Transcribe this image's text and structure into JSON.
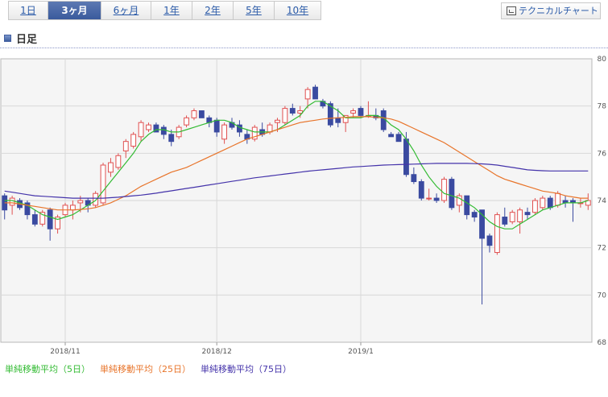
{
  "tabs": [
    {
      "label": "1日",
      "active": false
    },
    {
      "label": "3ヶ月",
      "active": true
    },
    {
      "label": "6ヶ月",
      "active": false
    },
    {
      "label": "1年",
      "active": false
    },
    {
      "label": "2年",
      "active": false
    },
    {
      "label": "5年",
      "active": false
    },
    {
      "label": "10年",
      "active": false
    }
  ],
  "tech_button": {
    "label": "テクニカルチャート",
    "icon": "chart-icon"
  },
  "section": {
    "title": "日足",
    "icon": "square-icon"
  },
  "chart_data": {
    "type": "candlestick",
    "title": "",
    "xlabel": "",
    "ylabel": "",
    "ylim": [
      68,
      80
    ],
    "yticks": [
      68,
      70,
      72,
      74,
      76,
      78,
      80
    ],
    "xticks": [
      "2018/11",
      "2018/12",
      "2019/1"
    ],
    "xtick_index": [
      8,
      28,
      47
    ],
    "grid": true,
    "colors": {
      "up": "#e05050",
      "down": "#3a4aa0",
      "ma5": "#33bb33",
      "ma25": "#e8742a",
      "ma75": "#4433aa"
    },
    "candles": [
      [
        74.2,
        74.3,
        73.2,
        73.6
      ],
      [
        73.8,
        74.2,
        73.4,
        74.1
      ],
      [
        74.0,
        74.1,
        73.6,
        73.7
      ],
      [
        73.9,
        74.0,
        73.2,
        73.4
      ],
      [
        73.4,
        73.6,
        72.9,
        73.0
      ],
      [
        73.0,
        73.6,
        72.9,
        73.5
      ],
      [
        73.6,
        73.7,
        72.3,
        72.8
      ],
      [
        72.8,
        73.4,
        72.6,
        73.3
      ],
      [
        73.4,
        73.9,
        73.3,
        73.8
      ],
      [
        73.6,
        74.0,
        73.2,
        73.8
      ],
      [
        73.9,
        74.2,
        73.5,
        74.0
      ],
      [
        74.0,
        74.1,
        73.5,
        73.8
      ],
      [
        73.8,
        74.4,
        73.7,
        74.3
      ],
      [
        73.9,
        75.6,
        73.8,
        75.5
      ],
      [
        75.2,
        75.8,
        75.0,
        75.6
      ],
      [
        75.4,
        76.0,
        75.3,
        75.9
      ],
      [
        76.1,
        76.6,
        75.8,
        76.5
      ],
      [
        76.3,
        76.9,
        76.2,
        76.8
      ],
      [
        76.7,
        77.4,
        76.5,
        77.3
      ],
      [
        77.0,
        77.3,
        76.9,
        77.2
      ],
      [
        77.2,
        77.3,
        76.9,
        76.9
      ],
      [
        77.1,
        77.2,
        76.6,
        76.8
      ],
      [
        76.8,
        77.0,
        76.3,
        76.5
      ],
      [
        76.7,
        77.2,
        76.6,
        77.1
      ],
      [
        77.2,
        77.6,
        77.1,
        77.5
      ],
      [
        77.5,
        77.9,
        77.4,
        77.8
      ],
      [
        77.8,
        77.8,
        77.5,
        77.5
      ],
      [
        77.5,
        77.6,
        77.1,
        77.3
      ],
      [
        77.4,
        77.5,
        76.7,
        76.9
      ],
      [
        76.6,
        77.3,
        76.4,
        77.2
      ],
      [
        77.3,
        77.5,
        77.0,
        77.1
      ],
      [
        77.2,
        77.4,
        76.7,
        76.9
      ],
      [
        76.8,
        77.0,
        76.4,
        76.6
      ],
      [
        76.6,
        77.2,
        76.5,
        77.1
      ],
      [
        77.0,
        77.3,
        76.7,
        76.8
      ],
      [
        76.9,
        77.3,
        76.8,
        77.2
      ],
      [
        77.3,
        77.5,
        76.9,
        77.4
      ],
      [
        77.3,
        78.0,
        77.2,
        77.9
      ],
      [
        77.9,
        78.1,
        77.6,
        77.7
      ],
      [
        77.7,
        78.0,
        77.5,
        77.8
      ],
      [
        78.3,
        78.8,
        77.9,
        78.7
      ],
      [
        78.8,
        78.9,
        78.3,
        78.3
      ],
      [
        78.2,
        78.3,
        77.9,
        78.0
      ],
      [
        78.1,
        78.2,
        77.1,
        77.2
      ],
      [
        77.5,
        77.9,
        77.1,
        77.3
      ],
      [
        77.3,
        77.6,
        76.9,
        77.6
      ],
      [
        77.7,
        77.9,
        77.5,
        77.8
      ],
      [
        77.9,
        78.0,
        77.5,
        77.6
      ],
      [
        77.6,
        78.2,
        77.5,
        77.6
      ],
      [
        77.6,
        77.9,
        77.4,
        77.5
      ],
      [
        77.8,
        77.9,
        76.9,
        77.0
      ],
      [
        76.8,
        76.9,
        76.7,
        76.7
      ],
      [
        76.8,
        76.9,
        76.5,
        76.5
      ],
      [
        76.6,
        76.9,
        75.0,
        75.1
      ],
      [
        75.1,
        75.4,
        74.7,
        74.8
      ],
      [
        74.8,
        74.9,
        74.0,
        74.1
      ],
      [
        74.1,
        74.5,
        74.0,
        74.1
      ],
      [
        74.1,
        74.3,
        73.9,
        74.0
      ],
      [
        74.0,
        75.0,
        73.9,
        74.9
      ],
      [
        74.9,
        75.0,
        73.6,
        73.7
      ],
      [
        73.8,
        74.3,
        73.5,
        74.2
      ],
      [
        74.2,
        74.2,
        73.2,
        73.4
      ],
      [
        73.5,
        73.6,
        73.1,
        73.3
      ],
      [
        73.6,
        73.6,
        69.6,
        72.4
      ],
      [
        72.5,
        72.6,
        71.8,
        72.1
      ],
      [
        71.8,
        73.5,
        71.7,
        73.4
      ],
      [
        73.3,
        73.7,
        72.9,
        73.0
      ],
      [
        73.1,
        73.6,
        73.0,
        73.5
      ],
      [
        73.1,
        73.7,
        72.6,
        73.6
      ],
      [
        73.5,
        73.7,
        73.2,
        73.4
      ],
      [
        73.5,
        74.1,
        73.4,
        74.0
      ],
      [
        73.7,
        74.2,
        73.6,
        74.1
      ],
      [
        74.1,
        74.2,
        73.6,
        73.7
      ],
      [
        73.8,
        74.4,
        73.7,
        74.3
      ],
      [
        74.0,
        74.2,
        73.7,
        73.9
      ],
      [
        74.0,
        74.1,
        73.1,
        73.9
      ],
      [
        73.9,
        74.1,
        73.7,
        73.9
      ],
      [
        73.8,
        74.3,
        73.6,
        74.0
      ]
    ],
    "series": [
      {
        "name": "単純移動平均（5日）",
        "color": "#33bb33",
        "values": [
          74.0,
          74.0,
          73.9,
          73.8,
          73.6,
          73.4,
          73.3,
          73.2,
          73.3,
          73.4,
          73.6,
          73.8,
          74.0,
          74.4,
          74.8,
          75.2,
          75.6,
          76.0,
          76.5,
          76.8,
          77.0,
          77.0,
          76.9,
          76.9,
          77.0,
          77.1,
          77.2,
          77.3,
          77.4,
          77.4,
          77.3,
          77.1,
          77.0,
          76.9,
          76.9,
          76.9,
          77.0,
          77.2,
          77.4,
          77.6,
          78.0,
          78.2,
          78.2,
          78.0,
          77.8,
          77.5,
          77.5,
          77.5,
          77.6,
          77.6,
          77.5,
          77.2,
          77.0,
          76.6,
          76.1,
          75.5,
          75.0,
          74.6,
          74.3,
          74.2,
          74.1,
          73.9,
          73.7,
          73.4,
          73.1,
          72.9,
          72.8,
          72.8,
          73.0,
          73.2,
          73.4,
          73.6,
          73.7,
          73.8,
          73.9,
          73.9,
          73.9,
          74.0
        ]
      },
      {
        "name": "単純移動平均（25日）",
        "color": "#e8742a",
        "values": [
          73.9,
          73.9,
          73.85,
          73.8,
          73.75,
          73.7,
          73.65,
          73.6,
          73.6,
          73.6,
          73.62,
          73.65,
          73.7,
          73.8,
          73.9,
          74.05,
          74.2,
          74.4,
          74.6,
          74.75,
          74.9,
          75.05,
          75.2,
          75.3,
          75.4,
          75.55,
          75.7,
          75.85,
          76.0,
          76.15,
          76.3,
          76.45,
          76.6,
          76.7,
          76.8,
          76.9,
          77.0,
          77.1,
          77.2,
          77.3,
          77.35,
          77.4,
          77.45,
          77.48,
          77.5,
          77.52,
          77.55,
          77.55,
          77.55,
          77.52,
          77.5,
          77.45,
          77.35,
          77.2,
          77.05,
          76.9,
          76.75,
          76.6,
          76.45,
          76.25,
          76.05,
          75.85,
          75.65,
          75.45,
          75.25,
          75.05,
          74.9,
          74.8,
          74.7,
          74.6,
          74.5,
          74.4,
          74.35,
          74.3,
          74.2,
          74.15,
          74.1,
          74.1
        ]
      },
      {
        "name": "単純移動平均（75日）",
        "color": "#4433aa",
        "values": [
          74.4,
          74.35,
          74.3,
          74.25,
          74.2,
          74.18,
          74.16,
          74.14,
          74.12,
          74.1,
          74.1,
          74.1,
          74.1,
          74.1,
          74.12,
          74.14,
          74.17,
          74.2,
          74.23,
          74.27,
          74.31,
          74.36,
          74.41,
          74.46,
          74.51,
          74.56,
          74.61,
          74.66,
          74.71,
          74.76,
          74.81,
          74.86,
          74.91,
          74.96,
          75.0,
          75.04,
          75.08,
          75.12,
          75.16,
          75.2,
          75.24,
          75.27,
          75.3,
          75.33,
          75.36,
          75.39,
          75.42,
          75.44,
          75.46,
          75.48,
          75.5,
          75.51,
          75.52,
          75.53,
          75.54,
          75.55,
          75.56,
          75.57,
          75.57,
          75.57,
          75.57,
          75.57,
          75.56,
          75.55,
          75.53,
          75.5,
          75.45,
          75.4,
          75.35,
          75.3,
          75.28,
          75.26,
          75.25,
          75.25,
          75.25,
          75.25,
          75.25,
          75.25
        ]
      }
    ]
  }
}
